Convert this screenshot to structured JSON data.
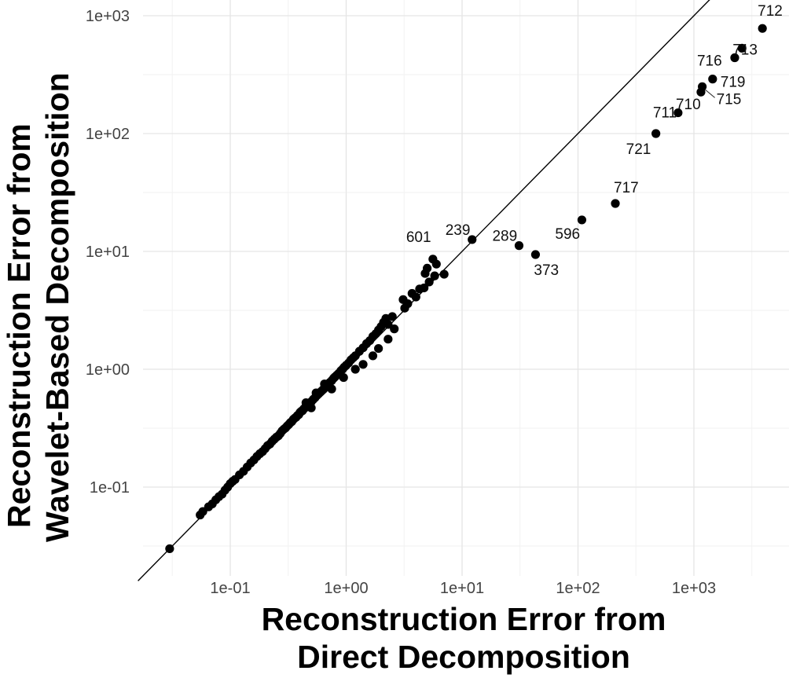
{
  "chart_data": {
    "type": "scatter",
    "xlabel": [
      "Reconstruction Error from",
      "Direct Decomposition"
    ],
    "ylabel": [
      "Reconstruction Error from",
      "Wavelet-Based Decomposition"
    ],
    "x_scale": "log10",
    "y_scale": "log10",
    "xlim": [
      0.016,
      5500
    ],
    "ylim": [
      0.0165,
      1350
    ],
    "x_ticks": [
      {
        "value": 0.1,
        "label": "1e-01"
      },
      {
        "value": 1,
        "label": "1e+00"
      },
      {
        "value": 10,
        "label": "1e+01"
      },
      {
        "value": 100,
        "label": "1e+02"
      },
      {
        "value": 1000,
        "label": "1e+03"
      }
    ],
    "y_ticks": [
      {
        "value": 0.1,
        "label": "1e-01"
      },
      {
        "value": 1,
        "label": "1e+00"
      },
      {
        "value": 10,
        "label": "1e+01"
      },
      {
        "value": 100,
        "label": "1e+02"
      },
      {
        "value": 1000,
        "label": "1e+03"
      }
    ],
    "grid": true,
    "reference_line": "y = x",
    "point_color": "#000000",
    "labeled_points": [
      {
        "id": "712",
        "x": 3900,
        "y": 780
      },
      {
        "id": "713",
        "x": 2600,
        "y": 530
      },
      {
        "id": "716",
        "x": 2250,
        "y": 440
      },
      {
        "id": "719",
        "x": 1450,
        "y": 290
      },
      {
        "id": "715",
        "x": 1180,
        "y": 250
      },
      {
        "id": "710",
        "x": 1150,
        "y": 225
      },
      {
        "id": "711",
        "x": 730,
        "y": 150
      },
      {
        "id": "721",
        "x": 470,
        "y": 100
      },
      {
        "id": "717",
        "x": 210,
        "y": 25.5
      },
      {
        "id": "596",
        "x": 108,
        "y": 18.5
      },
      {
        "id": "373",
        "x": 43,
        "y": 9.4
      },
      {
        "id": "289",
        "x": 31,
        "y": 11.2
      },
      {
        "id": "239",
        "x": 12.2,
        "y": 12.6
      },
      {
        "id": "601",
        "x": 5.6,
        "y": 8.6
      }
    ],
    "points": [
      {
        "x": 0.03,
        "y": 0.03
      },
      {
        "x": 0.055,
        "y": 0.058
      },
      {
        "x": 0.058,
        "y": 0.062
      },
      {
        "x": 0.065,
        "y": 0.068
      },
      {
        "x": 0.07,
        "y": 0.072
      },
      {
        "x": 0.075,
        "y": 0.078
      },
      {
        "x": 0.08,
        "y": 0.083
      },
      {
        "x": 0.085,
        "y": 0.087
      },
      {
        "x": 0.09,
        "y": 0.094
      },
      {
        "x": 0.095,
        "y": 0.1
      },
      {
        "x": 0.1,
        "y": 0.107
      },
      {
        "x": 0.105,
        "y": 0.112
      },
      {
        "x": 0.11,
        "y": 0.116
      },
      {
        "x": 0.12,
        "y": 0.127
      },
      {
        "x": 0.13,
        "y": 0.136
      },
      {
        "x": 0.14,
        "y": 0.148
      },
      {
        "x": 0.15,
        "y": 0.16
      },
      {
        "x": 0.16,
        "y": 0.17
      },
      {
        "x": 0.17,
        "y": 0.182
      },
      {
        "x": 0.18,
        "y": 0.192
      },
      {
        "x": 0.19,
        "y": 0.2
      },
      {
        "x": 0.2,
        "y": 0.212
      },
      {
        "x": 0.21,
        "y": 0.225
      },
      {
        "x": 0.22,
        "y": 0.232
      },
      {
        "x": 0.23,
        "y": 0.245
      },
      {
        "x": 0.24,
        "y": 0.255
      },
      {
        "x": 0.25,
        "y": 0.265
      },
      {
        "x": 0.26,
        "y": 0.272
      },
      {
        "x": 0.27,
        "y": 0.285
      },
      {
        "x": 0.28,
        "y": 0.3
      },
      {
        "x": 0.29,
        "y": 0.31
      },
      {
        "x": 0.3,
        "y": 0.318
      },
      {
        "x": 0.31,
        "y": 0.33
      },
      {
        "x": 0.32,
        "y": 0.34
      },
      {
        "x": 0.33,
        "y": 0.352
      },
      {
        "x": 0.34,
        "y": 0.36
      },
      {
        "x": 0.35,
        "y": 0.375
      },
      {
        "x": 0.36,
        "y": 0.385
      },
      {
        "x": 0.37,
        "y": 0.392
      },
      {
        "x": 0.38,
        "y": 0.405
      },
      {
        "x": 0.39,
        "y": 0.412
      },
      {
        "x": 0.4,
        "y": 0.43
      },
      {
        "x": 0.41,
        "y": 0.44
      },
      {
        "x": 0.42,
        "y": 0.445
      },
      {
        "x": 0.43,
        "y": 0.46
      },
      {
        "x": 0.44,
        "y": 0.47
      },
      {
        "x": 0.45,
        "y": 0.48
      },
      {
        "x": 0.46,
        "y": 0.49
      },
      {
        "x": 0.47,
        "y": 0.5
      },
      {
        "x": 0.48,
        "y": 0.515
      },
      {
        "x": 0.5,
        "y": 0.53
      },
      {
        "x": 0.52,
        "y": 0.555
      },
      {
        "x": 0.54,
        "y": 0.575
      },
      {
        "x": 0.56,
        "y": 0.6
      },
      {
        "x": 0.58,
        "y": 0.62
      },
      {
        "x": 0.6,
        "y": 0.64
      },
      {
        "x": 0.62,
        "y": 0.66
      },
      {
        "x": 0.64,
        "y": 0.68
      },
      {
        "x": 0.66,
        "y": 0.71
      },
      {
        "x": 0.68,
        "y": 0.73
      },
      {
        "x": 0.7,
        "y": 0.75
      },
      {
        "x": 0.72,
        "y": 0.77
      },
      {
        "x": 0.75,
        "y": 0.8
      },
      {
        "x": 0.78,
        "y": 0.84
      },
      {
        "x": 0.8,
        "y": 0.86
      },
      {
        "x": 0.83,
        "y": 0.89
      },
      {
        "x": 0.86,
        "y": 0.92
      },
      {
        "x": 0.9,
        "y": 0.97
      },
      {
        "x": 0.93,
        "y": 1.0
      },
      {
        "x": 0.96,
        "y": 1.04
      },
      {
        "x": 1.0,
        "y": 1.08
      },
      {
        "x": 1.05,
        "y": 1.13
      },
      {
        "x": 1.1,
        "y": 1.2
      },
      {
        "x": 1.15,
        "y": 1.25
      },
      {
        "x": 1.2,
        "y": 1.3
      },
      {
        "x": 1.3,
        "y": 1.42
      },
      {
        "x": 1.4,
        "y": 1.52
      },
      {
        "x": 1.5,
        "y": 1.65
      },
      {
        "x": 1.6,
        "y": 1.75
      },
      {
        "x": 1.7,
        "y": 1.9
      },
      {
        "x": 1.8,
        "y": 2.0
      },
      {
        "x": 1.9,
        "y": 2.15
      },
      {
        "x": 2.0,
        "y": 2.3
      },
      {
        "x": 2.1,
        "y": 2.5
      },
      {
        "x": 2.2,
        "y": 2.7
      },
      {
        "x": 2.3,
        "y": 2.4
      },
      {
        "x": 2.5,
        "y": 2.8
      },
      {
        "x": 2.3,
        "y": 1.8
      },
      {
        "x": 2.6,
        "y": 2.2
      },
      {
        "x": 1.9,
        "y": 1.5
      },
      {
        "x": 1.7,
        "y": 1.3
      },
      {
        "x": 1.2,
        "y": 1.0
      },
      {
        "x": 1.4,
        "y": 1.1
      },
      {
        "x": 0.95,
        "y": 0.85
      },
      {
        "x": 0.75,
        "y": 0.68
      },
      {
        "x": 0.5,
        "y": 0.47
      },
      {
        "x": 0.65,
        "y": 0.75
      },
      {
        "x": 0.55,
        "y": 0.63
      },
      {
        "x": 0.45,
        "y": 0.52
      },
      {
        "x": 3.1,
        "y": 3.9
      },
      {
        "x": 3.4,
        "y": 3.6
      },
      {
        "x": 3.7,
        "y": 4.4
      },
      {
        "x": 4.0,
        "y": 4.1
      },
      {
        "x": 4.3,
        "y": 4.8
      },
      {
        "x": 4.7,
        "y": 4.9
      },
      {
        "x": 3.2,
        "y": 3.3
      },
      {
        "x": 4.8,
        "y": 6.5
      },
      {
        "x": 5.0,
        "y": 7.2
      },
      {
        "x": 5.2,
        "y": 5.5
      },
      {
        "x": 5.8,
        "y": 6.2
      },
      {
        "x": 6.0,
        "y": 7.8
      },
      {
        "x": 7.0,
        "y": 6.4
      },
      {
        "x": 5.6,
        "y": 8.6
      },
      {
        "x": 12.2,
        "y": 12.6
      },
      {
        "x": 31,
        "y": 11.2
      },
      {
        "x": 43,
        "y": 9.4
      },
      {
        "x": 108,
        "y": 18.5
      },
      {
        "x": 210,
        "y": 25.5
      },
      {
        "x": 470,
        "y": 100
      },
      {
        "x": 730,
        "y": 150
      },
      {
        "x": 1150,
        "y": 225
      },
      {
        "x": 1180,
        "y": 250
      },
      {
        "x": 1450,
        "y": 290
      },
      {
        "x": 2250,
        "y": 440
      },
      {
        "x": 2600,
        "y": 530
      },
      {
        "x": 3900,
        "y": 780
      }
    ]
  }
}
